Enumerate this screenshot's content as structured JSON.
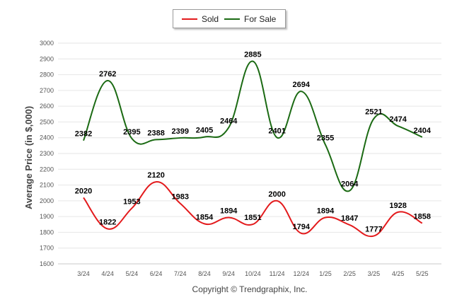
{
  "chart_data": {
    "type": "line",
    "categories": [
      "3/24",
      "4/24",
      "5/24",
      "6/24",
      "7/24",
      "8/24",
      "9/24",
      "10/24",
      "11/24",
      "12/24",
      "1/25",
      "2/25",
      "3/25",
      "4/25",
      "5/25"
    ],
    "series": [
      {
        "name": "Sold",
        "color": "#e31a1c",
        "values": [
          2020,
          1822,
          1953,
          2120,
          1983,
          1854,
          1894,
          1851,
          2000,
          1794,
          1894,
          1847,
          1777,
          1928,
          1858
        ]
      },
      {
        "name": "For Sale",
        "color": "#1b6a13",
        "values": [
          2382,
          2762,
          2395,
          2388,
          2399,
          2405,
          2464,
          2885,
          2401,
          2694,
          2355,
          2064,
          2521,
          2474,
          2404
        ]
      }
    ],
    "ylabel": "Average Price (in $,000)",
    "ylim": [
      1600,
      3000
    ],
    "yticks": [
      1600,
      1700,
      1800,
      1900,
      2000,
      2100,
      2200,
      2300,
      2400,
      2500,
      2600,
      2700,
      2800,
      2900,
      3000
    ],
    "grid": true,
    "legend_position": "top-center"
  },
  "footer": "Copyright © Trendgraphix, Inc."
}
